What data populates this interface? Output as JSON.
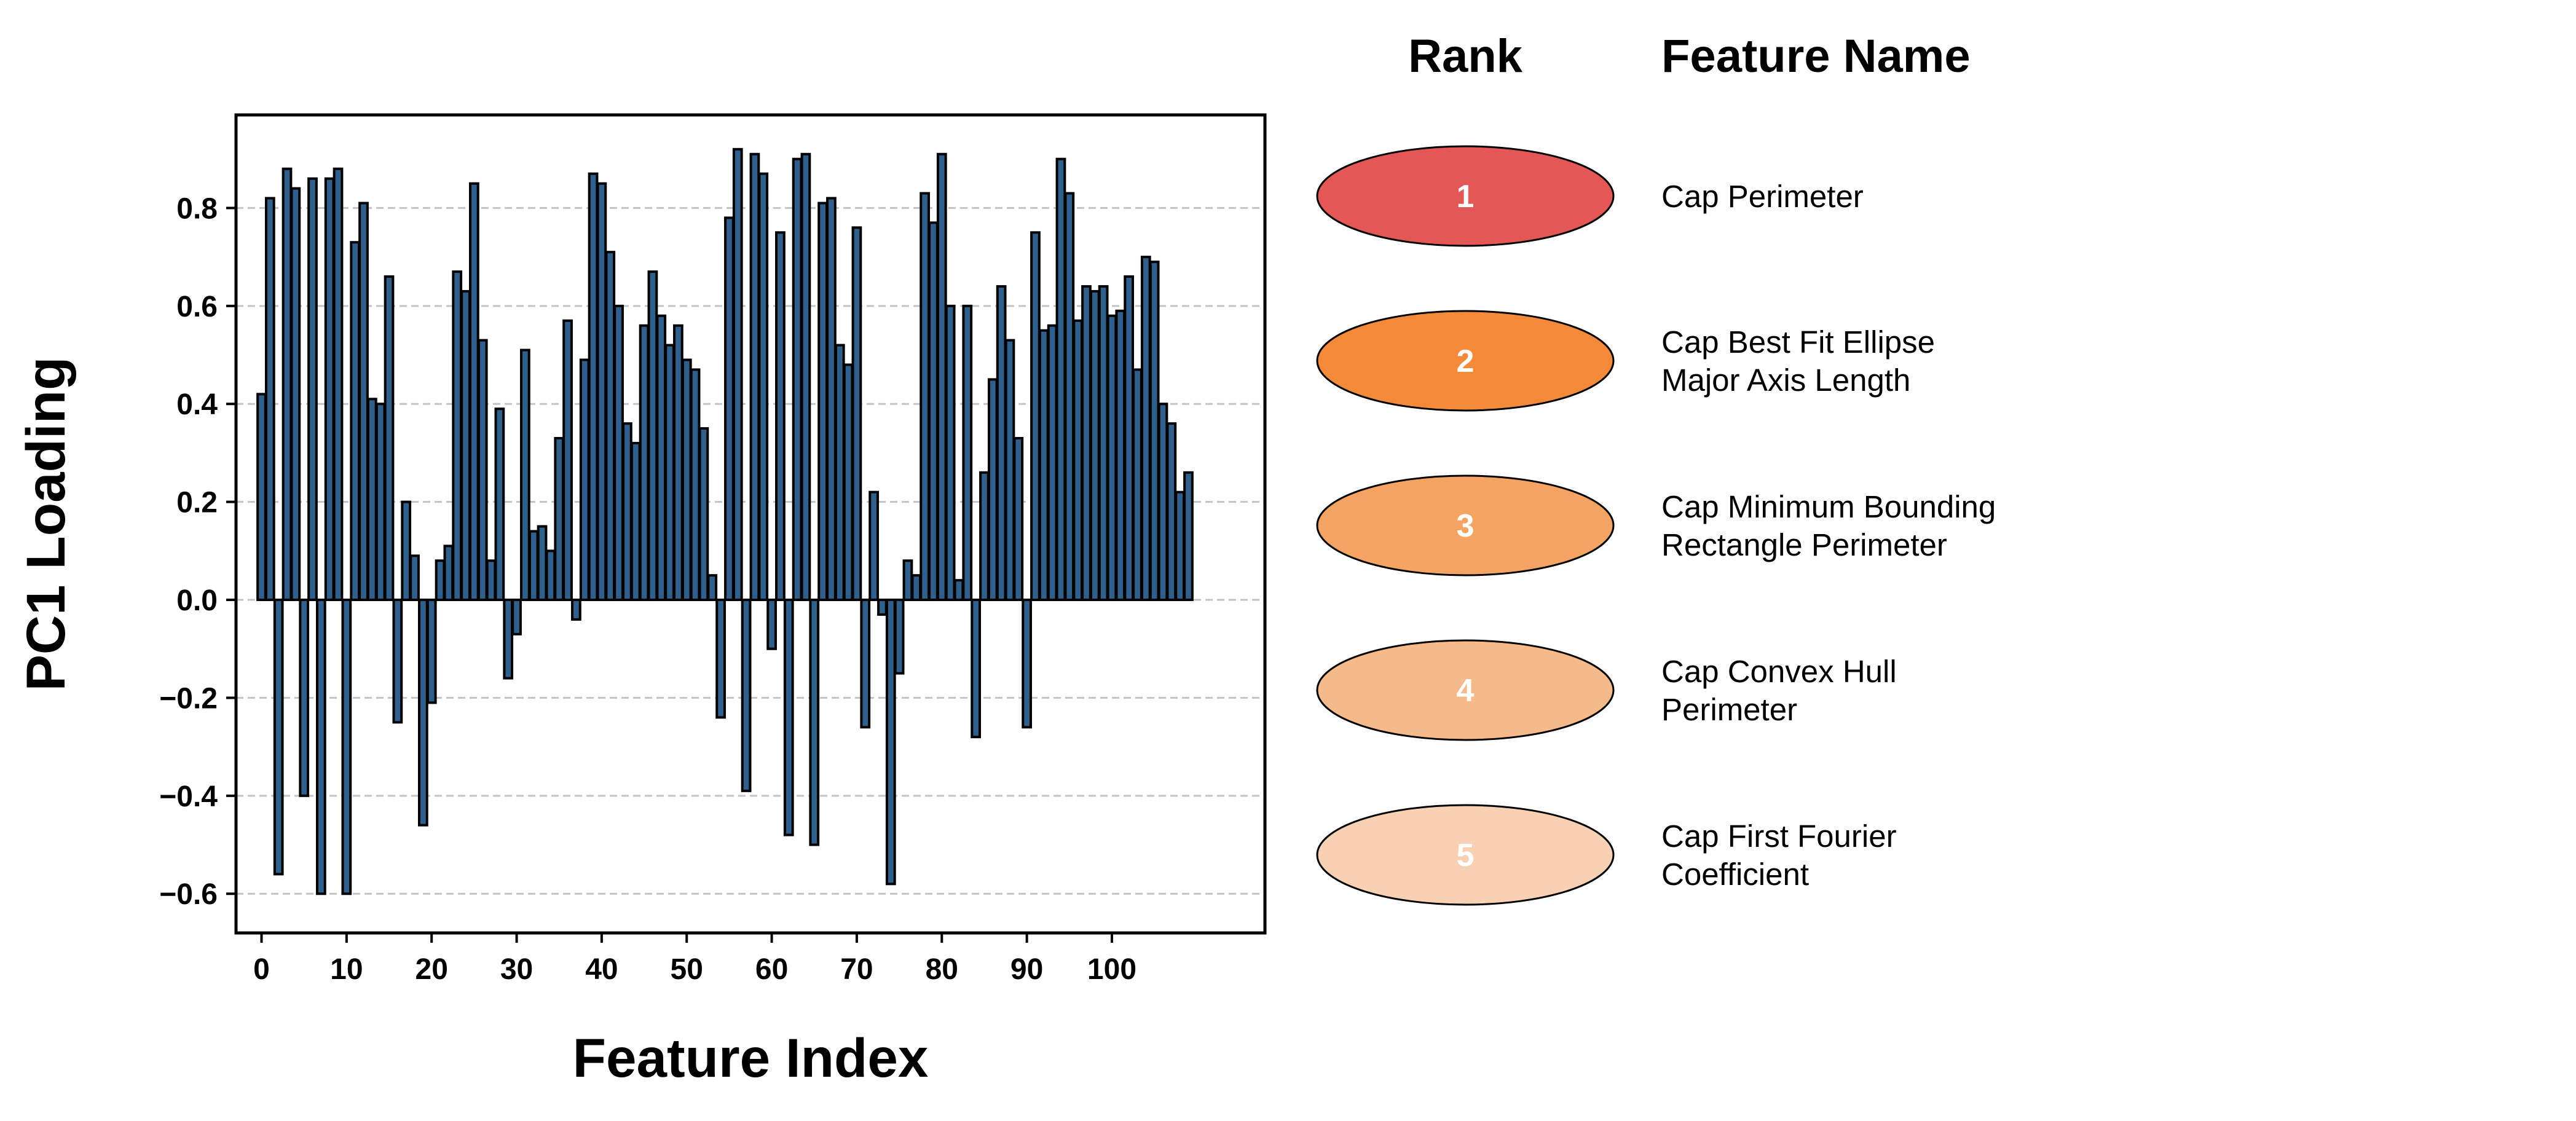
{
  "chart_data": {
    "type": "bar",
    "xlabel": "Feature Index",
    "ylabel": "PC1 Loading",
    "xlim": [
      -3,
      118
    ],
    "ylim": [
      -0.68,
      0.99
    ],
    "x_ticks": [
      0,
      10,
      20,
      30,
      40,
      50,
      60,
      70,
      80,
      90,
      100
    ],
    "y_ticks": [
      0.8,
      0.6,
      0.4,
      0.2,
      0.0,
      -0.2,
      -0.4,
      -0.6
    ],
    "y_tick_labels": [
      "0.8",
      "0.6",
      "0.4",
      "0.2",
      "0.0",
      "−0.2",
      "−0.4",
      "−0.6"
    ],
    "grid": "horizontal dashed",
    "bar_fill_color": "#2f5f8a",
    "bar_edge_color": "#000000",
    "x": [
      0,
      1,
      2,
      3,
      4,
      5,
      6,
      7,
      8,
      9,
      10,
      11,
      12,
      13,
      14,
      15,
      16,
      17,
      18,
      19,
      20,
      21,
      22,
      23,
      24,
      25,
      26,
      27,
      28,
      29,
      30,
      31,
      32,
      33,
      34,
      35,
      36,
      37,
      38,
      39,
      40,
      41,
      42,
      43,
      44,
      45,
      46,
      47,
      48,
      49,
      50,
      51,
      52,
      53,
      54,
      55,
      56,
      57,
      58,
      59,
      60,
      61,
      62,
      63,
      64,
      65,
      66,
      67,
      68,
      69,
      70,
      71,
      72,
      73,
      74,
      75,
      76,
      77,
      78,
      79,
      80,
      81,
      82,
      83,
      84,
      85,
      86,
      87,
      88,
      89,
      90,
      91,
      92,
      93,
      94,
      95,
      96,
      97,
      98,
      99,
      100,
      101,
      102,
      103,
      104,
      105,
      106,
      107,
      108,
      109,
      110,
      111
    ],
    "values": [
      0.42,
      0.82,
      -0.56,
      0.88,
      0.84,
      -0.4,
      0.86,
      -0.6,
      0.86,
      0.88,
      -0.6,
      0.73,
      0.81,
      0.41,
      0.4,
      0.66,
      -0.25,
      0.2,
      0.09,
      -0.46,
      -0.21,
      0.08,
      0.11,
      0.67,
      0.63,
      0.85,
      0.53,
      0.08,
      0.39,
      -0.16,
      -0.07,
      0.51,
      0.14,
      0.15,
      0.1,
      0.33,
      0.57,
      -0.04,
      0.49,
      0.87,
      0.85,
      0.71,
      0.6,
      0.36,
      0.32,
      0.56,
      0.67,
      0.58,
      0.52,
      0.56,
      0.49,
      0.47,
      0.35,
      0.05,
      -0.24,
      0.78,
      0.92,
      -0.39,
      0.91,
      0.87,
      -0.1,
      0.75,
      -0.48,
      0.9,
      0.91,
      -0.5,
      0.81,
      0.82,
      0.52,
      0.48,
      0.76,
      -0.26,
      0.22,
      -0.03,
      -0.58,
      -0.15,
      0.08,
      0.05,
      0.83,
      0.77,
      0.91,
      0.6,
      0.04,
      0.6,
      -0.28,
      0.26,
      0.45,
      0.64,
      0.53,
      0.33,
      -0.26,
      0.75,
      0.55,
      0.56,
      0.9,
      0.83,
      0.57,
      0.64,
      0.63,
      0.64,
      0.58,
      0.59,
      0.66,
      0.47,
      0.7,
      0.69,
      0.4,
      0.36,
      0.22,
      0.26,
      0.0,
      0.0
    ],
    "series_count_shown": 110
  },
  "table": {
    "rank_header": "Rank",
    "feature_header": "Feature Name",
    "rows": [
      {
        "rank": "1",
        "color": "#e35757",
        "line1": "Cap Perimeter",
        "line2": ""
      },
      {
        "rank": "2",
        "color": "#f28a3a",
        "line1": "Cap Best Fit Ellipse",
        "line2": "Major Axis Length"
      },
      {
        "rank": "3",
        "color": "#f3a463",
        "line1": "Cap Minimum Bounding",
        "line2": "Rectangle Perimeter"
      },
      {
        "rank": "4",
        "color": "#f5b98a",
        "line1": "Cap Convex Hull",
        "line2": "Perimeter"
      },
      {
        "rank": "5",
        "color": "#f8d1b4",
        "line1": "Cap First Fourier",
        "line2": "Coefficient"
      }
    ]
  }
}
